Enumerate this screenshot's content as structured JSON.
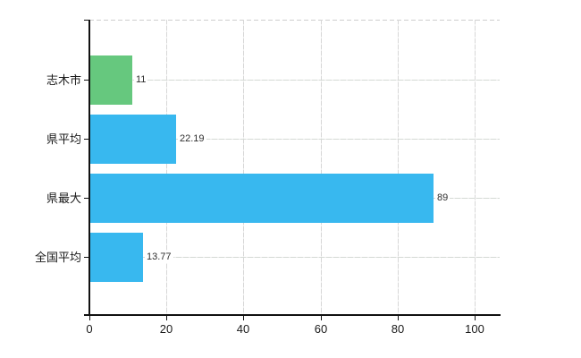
{
  "chart_data": {
    "type": "bar",
    "orientation": "horizontal",
    "title": "",
    "xlabel": "",
    "ylabel": "",
    "categories": [
      "志木市",
      "県平均",
      "県最大",
      "全国平均"
    ],
    "values": [
      11,
      22.19,
      89,
      13.77
    ],
    "value_labels": [
      "11",
      "22.19",
      "89",
      "13.77"
    ],
    "bar_colors": [
      "#66c87e",
      "#38b8ef",
      "#38b8ef",
      "#38b8ef"
    ],
    "xticks": [
      0,
      20,
      40,
      60,
      80,
      100
    ],
    "xtick_labels": [
      "0",
      "20",
      "40",
      "60",
      "80",
      "100"
    ],
    "xlim": [
      0,
      106.5
    ],
    "grid": true,
    "legend_position": "none"
  },
  "colors": {
    "background": "#ffffff",
    "bar_blue": "#38b8ef",
    "bar_green": "#66c87e",
    "gridline": "#d7d7d7",
    "axis": "#111111",
    "category_text": "#1a1a1a",
    "value_text": "#2e2e2e",
    "tick_text": "#1a1a1a"
  }
}
